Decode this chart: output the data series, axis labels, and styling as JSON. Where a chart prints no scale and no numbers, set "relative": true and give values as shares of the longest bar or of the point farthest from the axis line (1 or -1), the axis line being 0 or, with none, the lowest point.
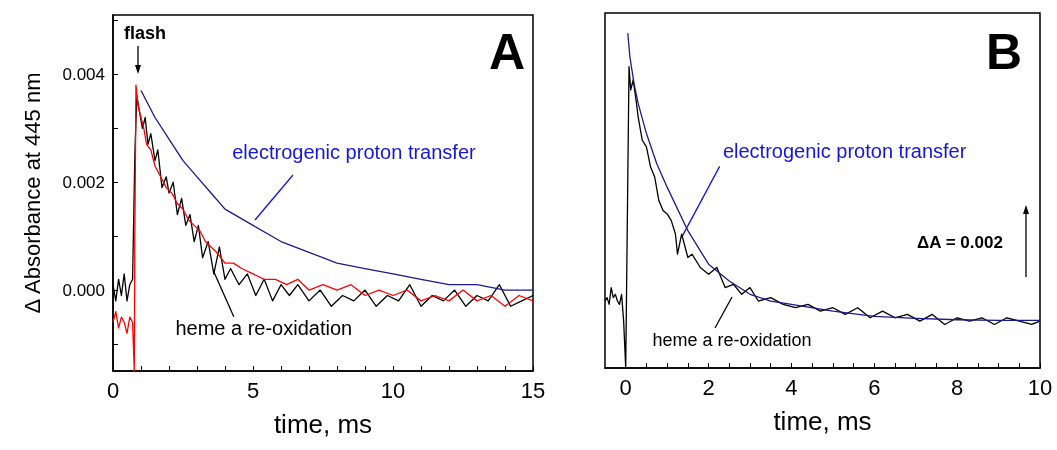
{
  "chart_data": [
    {
      "type": "line",
      "title": "A",
      "xlabel": "time, ms",
      "ylabel": "Δ Absorbance at 445 nm",
      "xlim": [
        0,
        15
      ],
      "ylim": [
        -0.0015,
        0.0051
      ],
      "xticks": [
        0,
        {
          "value": 1,
          "label": null
        },
        {
          "value": 2,
          "label": null
        },
        {
          "value": 3,
          "label": null
        },
        {
          "value": 4,
          "label": null
        },
        5,
        {
          "value": 6,
          "label": null
        },
        {
          "value": 7,
          "label": null
        },
        {
          "value": 8,
          "label": null
        },
        {
          "value": 9,
          "label": null
        },
        10,
        {
          "value": 11,
          "label": null
        },
        {
          "value": 12,
          "label": null
        },
        {
          "value": 13,
          "label": null
        },
        {
          "value": 14,
          "label": null
        },
        15
      ],
      "yticks": [
        {
          "value": -0.001,
          "label": null
        },
        {
          "value": 0,
          "label": "0.000"
        },
        {
          "value": 0.001,
          "label": null
        },
        {
          "value": 0.002,
          "label": "0.002"
        },
        {
          "value": 0.003,
          "label": null
        },
        {
          "value": 0.004,
          "label": "0.004"
        },
        {
          "value": 0.005,
          "label": null
        }
      ],
      "grid": false,
      "annotations": [
        "flash",
        {
          "text": "electrogenic proton transfer",
          "x": 5.07,
          "y": 0.0013
        },
        {
          "text": "heme a re-oxidation",
          "x": 3.6,
          "y": 0.00034
        }
      ],
      "x": [
        0,
        0.1,
        0.2,
        0.3,
        0.4,
        0.5,
        0.6,
        0.7,
        0.78,
        0.85,
        0.95,
        1.05,
        1.15,
        1.25,
        1.35,
        1.5,
        1.6,
        1.75,
        1.9,
        2.0,
        2.15,
        2.3,
        2.45,
        2.6,
        2.75,
        2.9,
        3.05,
        3.2,
        3.4,
        3.6,
        3.8,
        4.0,
        4.2,
        4.5,
        4.8,
        5.1,
        5.4,
        5.7,
        6.0,
        6.3,
        6.6,
        7.0,
        7.4,
        7.8,
        8.2,
        8.6,
        9.0,
        9.4,
        9.8,
        10.2,
        10.6,
        11.0,
        11.4,
        11.8,
        12.2,
        12.6,
        13.0,
        13.4,
        13.8,
        14.2,
        14.6,
        15.0
      ],
      "series": [
        {
          "color": "#000000",
          "values": [
            0.0001,
            -0.0002,
            0.0002,
            -0.0001,
            0.0003,
            -0.0002,
            0.0001,
            0.0002,
            0.0025,
            0.0036,
            0.0033,
            0.003,
            0.0032,
            0.0027,
            0.0029,
            0.0024,
            0.0026,
            0.0019,
            0.0021,
            0.0018,
            0.002,
            0.0014,
            0.0017,
            0.0012,
            0.0014,
            0.0009,
            0.0012,
            0.0006,
            0.0009,
            0.0003,
            0.0008,
            0.0002,
            0.0004,
            0.0001,
            0.0003,
            -0.0001,
            0.0002,
            -0.0002,
            0.0001,
            -0.0001,
            0.0001,
            -0.0002,
            0.0,
            -0.0003,
            -0.0001,
            -0.0002,
            0.0,
            -0.0003,
            -0.0001,
            -0.0002,
            0.0001,
            -0.0003,
            -0.0001,
            -0.0002,
            0.0,
            -0.0003,
            -0.0001,
            -0.0002,
            0.0001,
            -0.0003,
            -0.0002,
            -0.0001
          ]
        },
        {
          "color": "#ff0000",
          "x": [
            0,
            0.1,
            0.2,
            0.3,
            0.4,
            0.5,
            0.6,
            0.7,
            0.76,
            0.78,
            0.82,
            0.9,
            1.0,
            1.1,
            1.2,
            1.35,
            1.5,
            1.7,
            1.9,
            2.1,
            2.3,
            2.5,
            2.7,
            2.9,
            3.1,
            3.3,
            3.5,
            3.7,
            4.0,
            4.3,
            4.6,
            5.0,
            5.4,
            5.8,
            6.2,
            6.6,
            7.0,
            7.5,
            8.0,
            8.5,
            9.0,
            9.5,
            10.0,
            10.5,
            11.0,
            11.5,
            12.0,
            12.5,
            13.0,
            13.5,
            14.0,
            14.5,
            15.0
          ],
          "values": [
            -0.0006,
            -0.0004,
            -0.0007,
            -0.0005,
            -0.0006,
            -0.0008,
            -0.0005,
            -0.0006,
            -0.0015,
            0.001,
            0.0038,
            0.0034,
            0.0032,
            0.003,
            0.0027,
            0.0026,
            0.0023,
            0.0021,
            0.0019,
            0.0018,
            0.0016,
            0.0015,
            0.0013,
            0.0012,
            0.0011,
            0.0009,
            0.0008,
            0.0007,
            0.0005,
            0.0005,
            0.0004,
            0.0003,
            0.0002,
            0.0002,
            0.0001,
            0.0002,
            0.0,
            0.0001,
            0.0,
            0.0001,
            -0.0001,
            0.0,
            -0.0001,
            0.0,
            -0.0002,
            -0.0001,
            -0.0002,
            0.0,
            -0.0002,
            -0.0001,
            -0.0003,
            -0.0001,
            -0.0002
          ]
        },
        {
          "color": "#1a1a8c",
          "x": [
            1.0,
            1.5,
            2,
            2.5,
            3,
            3.5,
            4,
            5,
            6,
            7,
            8,
            9,
            10,
            11,
            12,
            13,
            14,
            15
          ],
          "values": [
            0.0037,
            0.0032,
            0.0028,
            0.0024,
            0.0021,
            0.0018,
            0.0015,
            0.0012,
            0.0009,
            0.0007,
            0.0005,
            0.0004,
            0.0003,
            0.0002,
            0.0001,
            0.0001,
            0.0,
            0.0
          ]
        }
      ]
    },
    {
      "type": "line",
      "title": "B",
      "xlabel": "time, ms",
      "relative": true,
      "xlim": [
        -0.5,
        10
      ],
      "xticks": [
        0,
        {
          "value": 0.5,
          "label": null
        },
        {
          "value": 1,
          "label": null
        },
        {
          "value": 1.5,
          "label": null
        },
        2,
        {
          "value": 2.5,
          "label": null
        },
        {
          "value": 3,
          "label": null
        },
        {
          "value": 3.5,
          "label": null
        },
        4,
        {
          "value": 4.5,
          "label": null
        },
        {
          "value": 5,
          "label": null
        },
        {
          "value": 5.5,
          "label": null
        },
        6,
        {
          "value": 6.5,
          "label": null
        },
        {
          "value": 7,
          "label": null
        },
        {
          "value": 7.5,
          "label": null
        },
        8,
        {
          "value": 8.5,
          "label": null
        },
        {
          "value": 9,
          "label": null
        },
        {
          "value": 9.5,
          "label": null
        },
        10
      ],
      "grid": false,
      "annotations": [
        {
          "text": "electrogenic proton transfer",
          "x": 1.35,
          "y": 0.39
        },
        "heme a re-oxidation",
        "ΔA = 0.002"
      ],
      "series": [
        {
          "color": "#000000",
          "x": [
            -0.5,
            -0.45,
            -0.4,
            -0.35,
            -0.3,
            -0.25,
            -0.2,
            -0.15,
            -0.1,
            -0.05,
            0.0,
            0.08,
            0.12,
            0.18,
            0.25,
            0.3,
            0.4,
            0.5,
            0.6,
            0.7,
            0.8,
            0.9,
            1.0,
            1.1,
            1.2,
            1.25,
            1.35,
            1.5,
            1.6,
            1.8,
            2.0,
            2.2,
            2.4,
            2.6,
            2.8,
            3.0,
            3.2,
            3.5,
            3.8,
            4.1,
            4.4,
            4.7,
            5.0,
            5.3,
            5.6,
            5.9,
            6.2,
            6.5,
            6.8,
            7.1,
            7.4,
            7.7,
            8.0,
            8.3,
            8.6,
            8.9,
            9.2,
            9.5,
            9.8,
            10.0
          ],
          "values": [
            0.2,
            0.21,
            0.19,
            0.24,
            0.21,
            0.22,
            0.2,
            0.19,
            0.22,
            0.14,
            0.0,
            0.9,
            0.83,
            0.86,
            0.8,
            0.75,
            0.68,
            0.66,
            0.6,
            0.57,
            0.5,
            0.47,
            0.46,
            0.44,
            0.4,
            0.34,
            0.4,
            0.33,
            0.34,
            0.3,
            0.28,
            0.3,
            0.24,
            0.25,
            0.22,
            0.24,
            0.2,
            0.21,
            0.19,
            0.18,
            0.19,
            0.17,
            0.18,
            0.16,
            0.18,
            0.15,
            0.17,
            0.15,
            0.16,
            0.14,
            0.16,
            0.13,
            0.15,
            0.14,
            0.15,
            0.13,
            0.15,
            0.14,
            0.13,
            0.14
          ]
        },
        {
          "color": "#1a1a8c",
          "x": [
            0.05,
            0.1,
            0.2,
            0.3,
            0.5,
            0.75,
            1,
            1.5,
            2,
            2.5,
            3,
            3.5,
            4,
            5,
            6,
            7,
            8,
            9,
            10
          ],
          "values": [
            1.0,
            0.93,
            0.85,
            0.79,
            0.7,
            0.61,
            0.54,
            0.41,
            0.31,
            0.26,
            0.22,
            0.2,
            0.19,
            0.17,
            0.154,
            0.148,
            0.144,
            0.142,
            0.142
          ]
        }
      ]
    }
  ]
}
